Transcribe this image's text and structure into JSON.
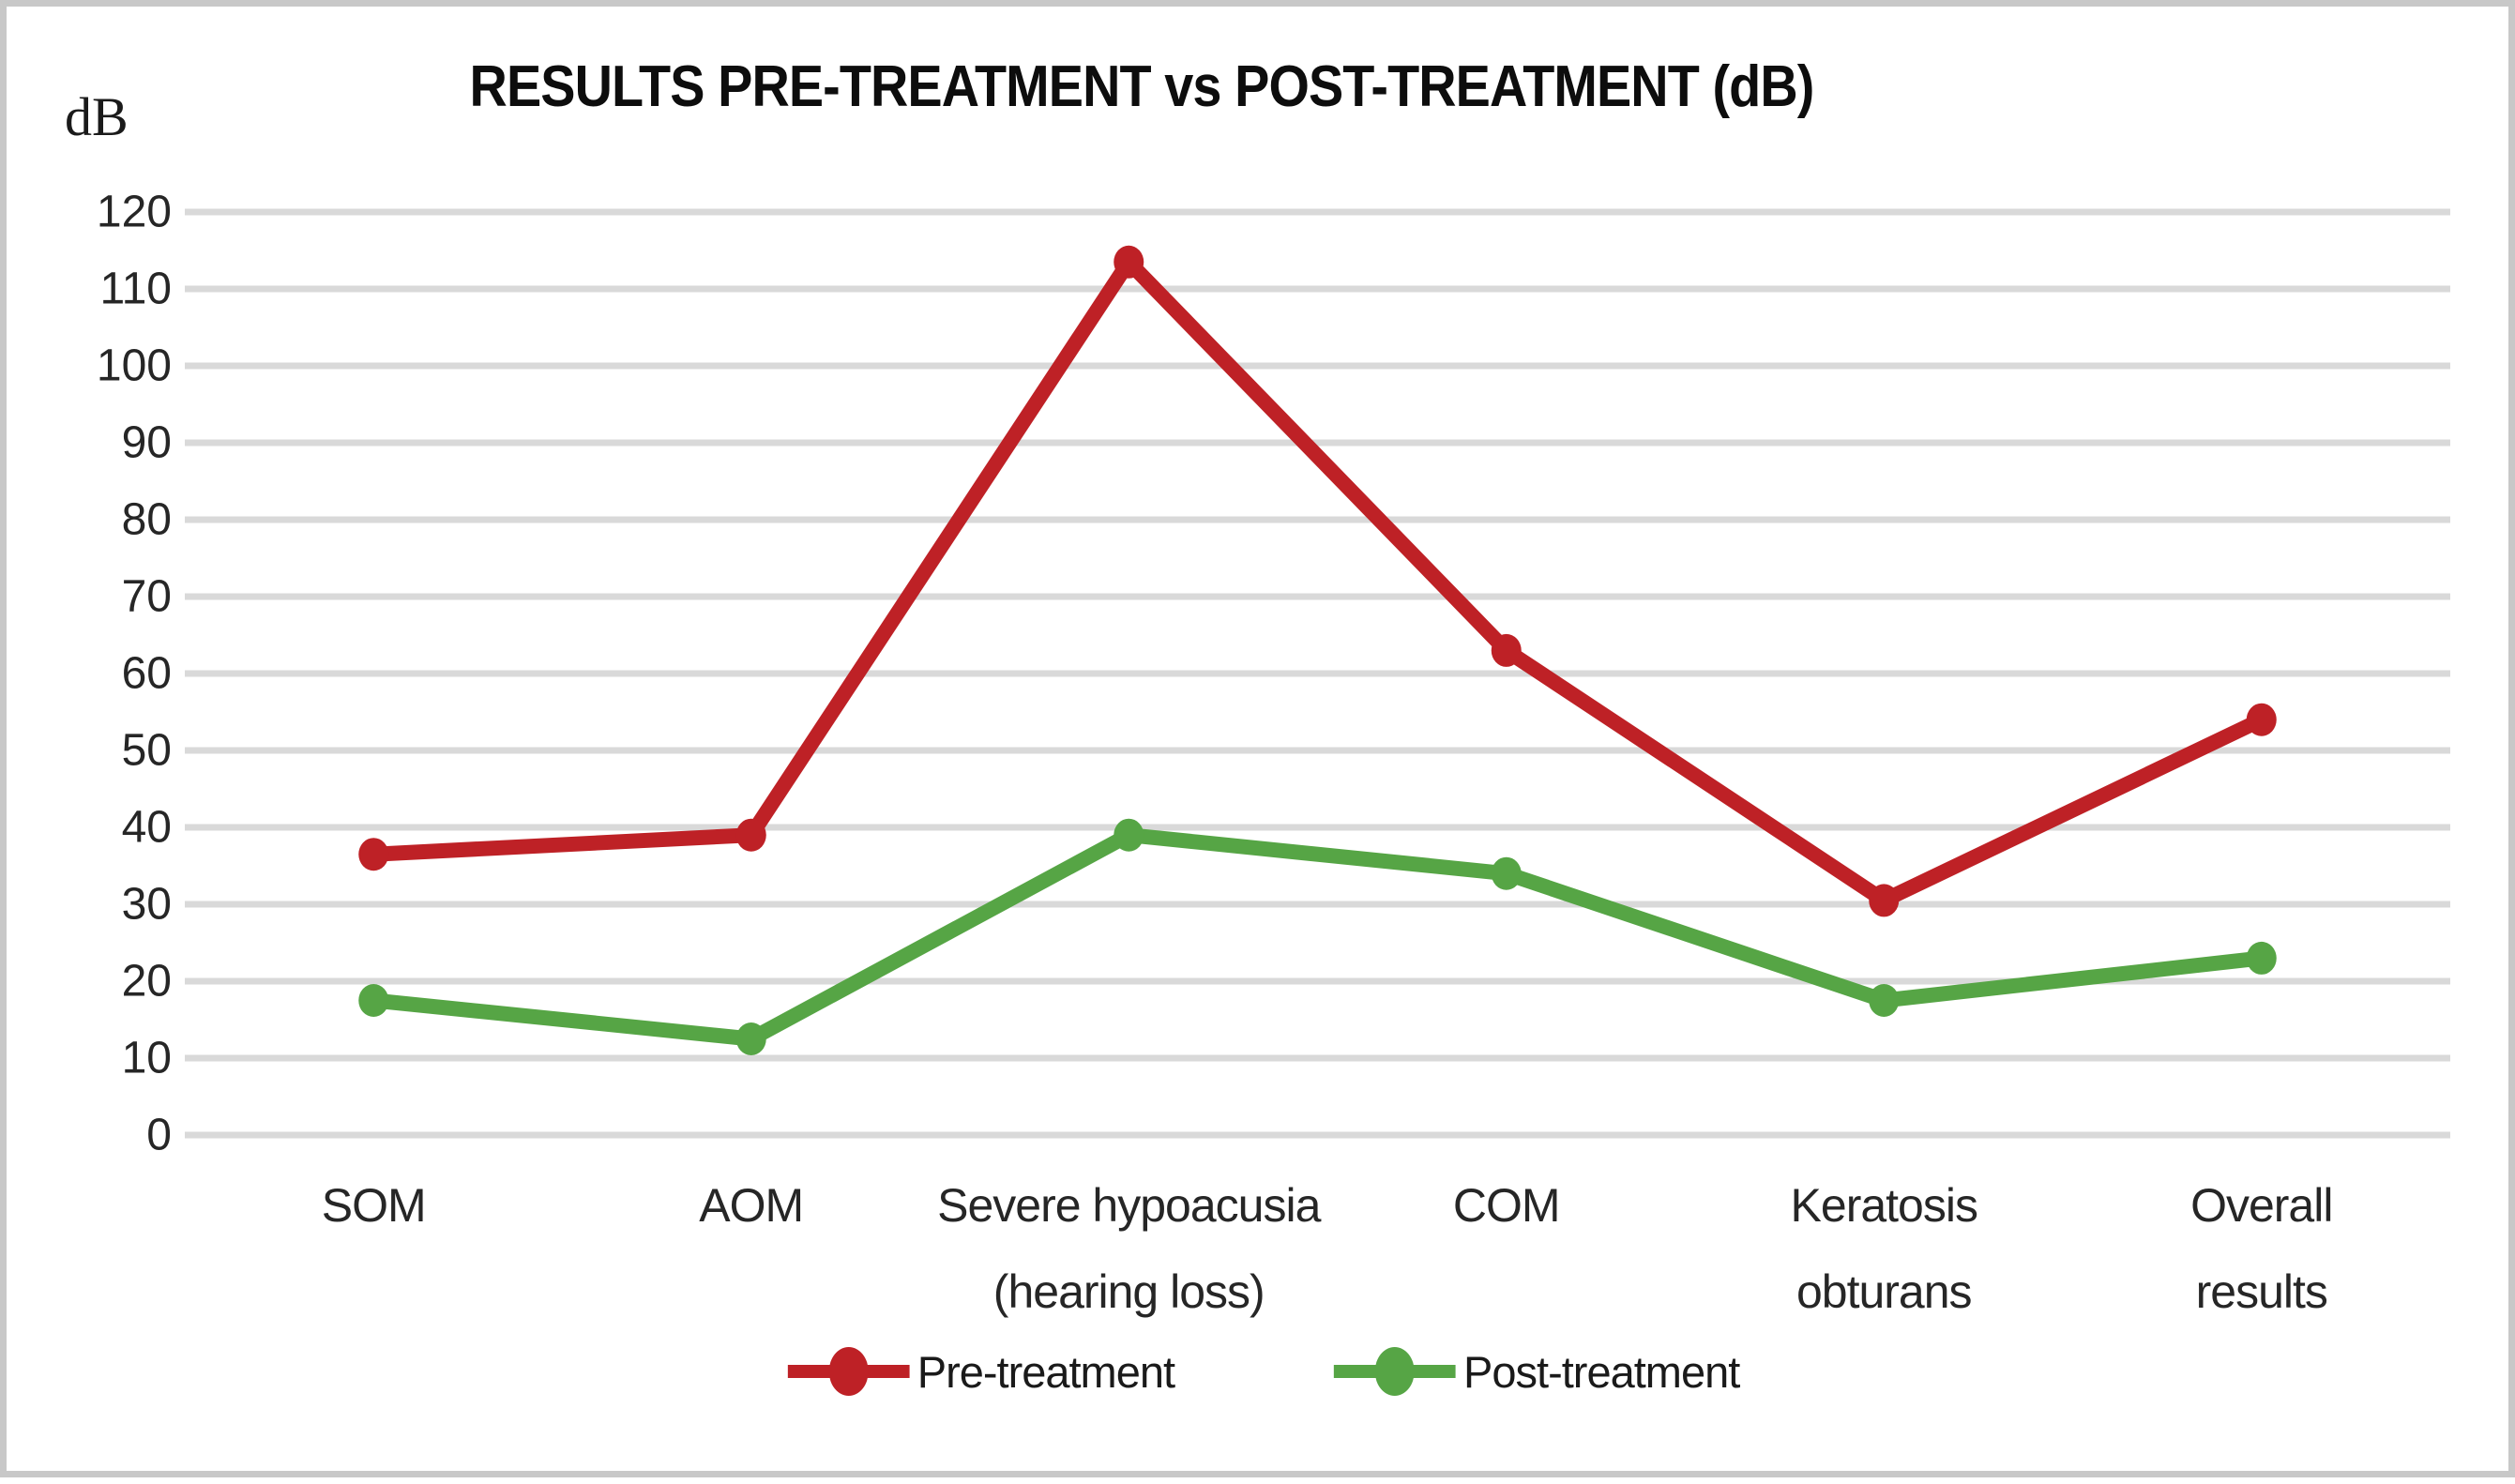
{
  "title": "RESULTS PRE-TREATMENT vs POST-TREATMENT (dB)",
  "y_axis": {
    "unit_label": "dB",
    "ticks": [
      "0",
      "10",
      "20",
      "30",
      "40",
      "50",
      "60",
      "70",
      "80",
      "90",
      "100",
      "110",
      "120"
    ]
  },
  "chart_data": {
    "type": "line",
    "title": "RESULTS PRE-TREATMENT vs POST-TREATMENT (dB)",
    "xlabel": "",
    "ylabel": "dB",
    "ylim": [
      0,
      120
    ],
    "ytick_step": 10,
    "grid": true,
    "legend_position": "bottom",
    "categories": [
      "SOM",
      "AOM",
      "Severe hypoacusia\n(hearing loss)",
      "COM",
      "Keratosis\nobturans",
      "Overall\nresults"
    ],
    "series": [
      {
        "name": "Pre-treatment",
        "color": "#be2126",
        "values": [
          36.5,
          39,
          113.5,
          63,
          30.5,
          54
        ]
      },
      {
        "name": "Post-treatment",
        "color": "#56a545",
        "values": [
          17.5,
          12.5,
          39,
          34,
          17.5,
          23
        ]
      }
    ]
  },
  "colors": {
    "gridline": "#d9d9d9",
    "frame_border": "#c8c8c8",
    "text": "#262626"
  }
}
